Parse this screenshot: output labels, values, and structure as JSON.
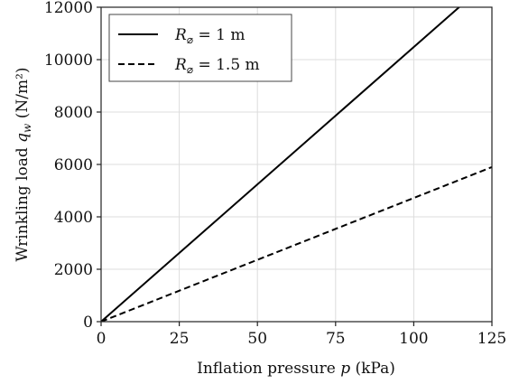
{
  "chart_data": {
    "type": "line",
    "xlabel": "Inflation pressure p (kPa)",
    "ylabel": "Wrinkling load q_w (N/m²)",
    "xlim": [
      0,
      125
    ],
    "ylim": [
      0,
      12000
    ],
    "xticks": [
      0,
      25,
      50,
      75,
      100,
      125
    ],
    "yticks": [
      0,
      2000,
      4000,
      6000,
      8000,
      10000,
      12000
    ],
    "xtick_labels": [
      "0",
      "25",
      "50",
      "75",
      "100",
      "125"
    ],
    "ytick_labels": [
      "0",
      "2000",
      "4000",
      "6000",
      "8000",
      "10000",
      "12000"
    ],
    "grid": true,
    "legend_position": "top-left",
    "series": [
      {
        "name": "R_⌀ = 1 m",
        "style": "solid",
        "color": "#000000",
        "x": [
          0,
          125
        ],
        "y": [
          0,
          13100
        ]
      },
      {
        "name": "R_⌀ = 1.5 m",
        "style": "dashed",
        "color": "#000000",
        "x": [
          0,
          125
        ],
        "y": [
          0,
          5900
        ]
      }
    ]
  }
}
